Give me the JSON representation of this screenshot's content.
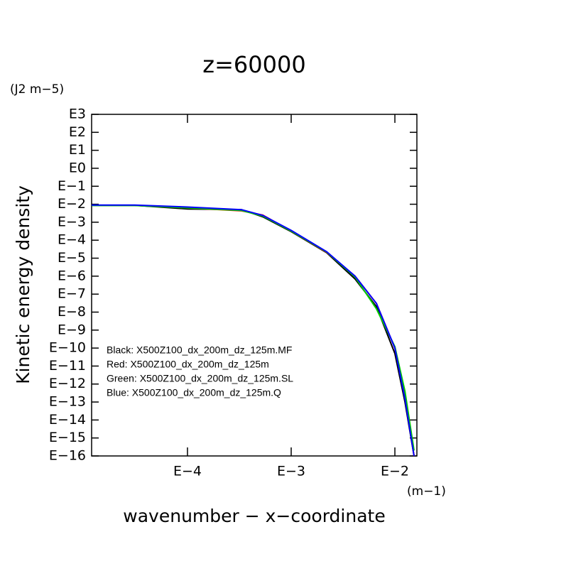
{
  "chart_data": {
    "type": "line",
    "title": "z=60000",
    "y_unit": "(J2 m−5)",
    "x_unit": "(m−1)",
    "xlabel": "wavenumber − x−coordinate",
    "ylabel": "Kinetic energy density",
    "xlog": true,
    "ylog": true,
    "xlim": [
      1.19e-05,
      0.0163
    ],
    "ylim": [
      1e-16,
      1000
    ],
    "xticks": [
      {
        "value": 0.0001,
        "label": "E−4"
      },
      {
        "value": 0.001,
        "label": "E−3"
      },
      {
        "value": 0.01,
        "label": "E−2"
      }
    ],
    "yticks": [
      {
        "value": 1000,
        "label": "E3"
      },
      {
        "value": 100,
        "label": "E2"
      },
      {
        "value": 10,
        "label": "E1"
      },
      {
        "value": 1,
        "label": "E0"
      },
      {
        "value": 0.1,
        "label": "E−1"
      },
      {
        "value": 0.01,
        "label": "E−2"
      },
      {
        "value": 0.001,
        "label": "E−3"
      },
      {
        "value": 0.0001,
        "label": "E−4"
      },
      {
        "value": 1e-05,
        "label": "E−5"
      },
      {
        "value": 1e-06,
        "label": "E−6"
      },
      {
        "value": 1e-07,
        "label": "E−7"
      },
      {
        "value": 1e-08,
        "label": "E−8"
      },
      {
        "value": 1e-09,
        "label": "E−9"
      },
      {
        "value": 1e-10,
        "label": "E−10"
      },
      {
        "value": 1e-11,
        "label": "E−11"
      },
      {
        "value": 1e-12,
        "label": "E−12"
      },
      {
        "value": 1e-13,
        "label": "E−13"
      },
      {
        "value": 1e-14,
        "label": "E−14"
      },
      {
        "value": 1e-15,
        "label": "E−15"
      },
      {
        "value": 1e-16,
        "label": "E−16"
      }
    ],
    "x": [
      1.19e-05,
      3.11e-05,
      0.0001,
      0.000332,
      0.000532,
      0.001,
      0.0022,
      0.00413,
      0.00664,
      0.01,
      0.0125,
      0.0153
    ],
    "series": [
      {
        "name": "Black: X500Z100_dx_200m_dz_125m.MF",
        "color": "#000000",
        "values": [
          0.0087,
          0.0087,
          0.0055,
          0.005,
          0.002,
          0.0003,
          2e-05,
          7e-07,
          2e-08,
          5e-11,
          1e-13,
          1e-16
        ]
      },
      {
        "name": "Red: X500Z100_dx_200m_dz_125m",
        "color": "#ff0000",
        "values": [
          0.0087,
          0.0087,
          0.0063,
          0.0043,
          0.0025,
          0.00032,
          2.1e-05,
          1e-06,
          3e-08,
          1e-10,
          2e-13,
          1e-16
        ]
      },
      {
        "name": "Green: X500Z100_dx_200m_dz_125m.SL",
        "color": "#00cc00",
        "values": [
          0.0085,
          0.0085,
          0.0063,
          0.0045,
          0.0022,
          0.00032,
          2.2e-05,
          9e-07,
          1.5e-08,
          1.2e-10,
          4e-13,
          2e-16
        ]
      },
      {
        "name": "Blue: X500Z100_dx_200m_dz_125m.Q",
        "color": "#0000ff",
        "values": [
          0.009,
          0.009,
          0.007,
          0.005,
          0.0024,
          0.00035,
          2.3e-05,
          1e-06,
          3e-08,
          1e-10,
          1.5e-13,
          1e-16
        ]
      }
    ]
  }
}
